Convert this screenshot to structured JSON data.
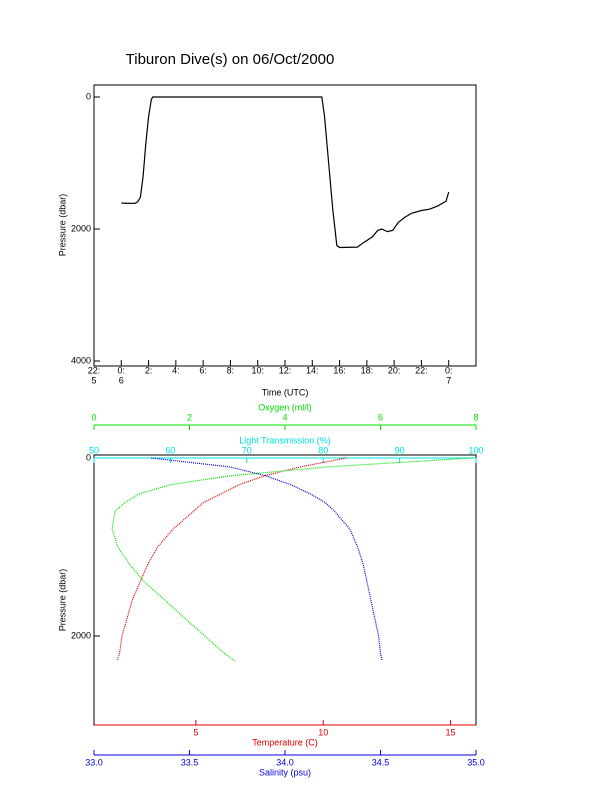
{
  "chart_data": [
    {
      "type": "line",
      "title": "Tiburon Dive(s) on 06/Oct/2000",
      "x_label": "Time (UTC)",
      "y_label": "Pressure (dbar)",
      "x": [
        0,
        0.5,
        1.0,
        1.2,
        1.4,
        1.6,
        1.8,
        2.0,
        2.2,
        2.3,
        14.7,
        14.9,
        15.2,
        15.5,
        15.8,
        16.0,
        17.3,
        17.8,
        18.4,
        18.8,
        19.1,
        19.5,
        19.9,
        20.3,
        20.8,
        21.3,
        22.0,
        22.6,
        23.2,
        23.8,
        24.0
      ],
      "series": [
        {
          "color": "#000000",
          "values": [
            1606,
            1612,
            1610,
            1590,
            1520,
            1200,
            700,
            300,
            40,
            0,
            0,
            300,
            1000,
            1700,
            2250,
            2280,
            2275,
            2200,
            2120,
            2020,
            2000,
            2040,
            2020,
            1900,
            1820,
            1760,
            1720,
            1700,
            1650,
            1580,
            1440
          ]
        }
      ],
      "xlim": [
        -2,
        26
      ],
      "xticks": [
        {
          "value": -2,
          "label": "22:",
          "sublabel": "5"
        },
        {
          "value": 0,
          "label": "0:",
          "sublabel": "6"
        },
        {
          "value": 2,
          "label": "2:"
        },
        {
          "value": 4,
          "label": "4:"
        },
        {
          "value": 6,
          "label": "6:"
        },
        {
          "value": 8,
          "label": "8:"
        },
        {
          "value": 10,
          "label": "10:"
        },
        {
          "value": 12,
          "label": "12:"
        },
        {
          "value": 14,
          "label": "14:"
        },
        {
          "value": 16,
          "label": "16:"
        },
        {
          "value": 18,
          "label": "18:"
        },
        {
          "value": 20,
          "label": "20:"
        },
        {
          "value": 22,
          "label": "22:"
        },
        {
          "value": 24,
          "label": "0:",
          "sublabel": "7"
        }
      ],
      "ylim": [
        4000,
        0
      ],
      "yticks": [
        0,
        2000,
        4000
      ]
    },
    {
      "type": "profile",
      "y_label": "Pressure (dbar)",
      "y": [
        0,
        100,
        200,
        300,
        400,
        500,
        600,
        800,
        1000,
        1200,
        1400,
        1600,
        1800,
        2000,
        2200,
        2280
      ],
      "ylim": [
        3000,
        0
      ],
      "yticks": [
        0,
        2000
      ],
      "axes": [
        {
          "label": "Oxygen (ml/l)",
          "color": "#00e000",
          "position": "top",
          "lim": [
            0,
            8
          ],
          "ticks": [
            0,
            2,
            4,
            6,
            8
          ]
        },
        {
          "label": "Light Transmission (%)",
          "color": "#00e0e0",
          "position": "top",
          "lim": [
            50,
            100
          ],
          "ticks": [
            50,
            60,
            70,
            80,
            90,
            100
          ]
        },
        {
          "label": "Temperature (C)",
          "color": "#e00000",
          "position": "bottom",
          "lim": [
            1,
            16
          ],
          "ticks": [
            5,
            10,
            15
          ]
        },
        {
          "label": "Salinity (psu)",
          "color": "#0000e0",
          "position": "bottom",
          "lim": [
            33,
            35
          ],
          "ticks": [
            {
              "value": 33,
              "label": "33.0"
            },
            {
              "value": 33.5,
              "label": "33.5"
            },
            {
              "value": 34,
              "label": "34.0"
            },
            {
              "value": 34.5,
              "label": "34.5"
            },
            {
              "value": 35,
              "label": "35.0"
            }
          ]
        }
      ],
      "series": [
        {
          "axis": 2,
          "color": "#e00000",
          "values": [
            10.9,
            9.1,
            7.7,
            6.7,
            6.0,
            5.3,
            4.9,
            4.1,
            3.5,
            3.1,
            2.8,
            2.5,
            2.3,
            2.1,
            2.0,
            1.9
          ]
        },
        {
          "axis": 3,
          "color": "#0000e0",
          "values": [
            33.3,
            33.71,
            33.9,
            34.03,
            34.13,
            34.21,
            34.26,
            34.34,
            34.38,
            34.41,
            34.43,
            34.45,
            34.47,
            34.49,
            34.5,
            34.51
          ]
        },
        {
          "axis": 0,
          "color": "#00e000",
          "values": [
            7.9,
            4.9,
            2.85,
            1.6,
            0.96,
            0.65,
            0.44,
            0.38,
            0.5,
            0.75,
            1.07,
            1.49,
            1.9,
            2.32,
            2.74,
            2.95
          ]
        }
      ]
    }
  ]
}
